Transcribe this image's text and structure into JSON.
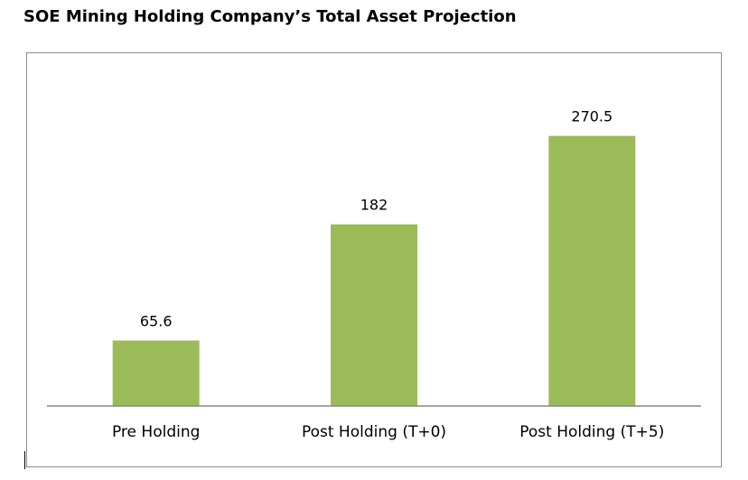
{
  "chart_data": {
    "type": "bar",
    "title": "SOE Mining Holding Company’s Total Asset Projection",
    "categories": [
      "Pre Holding",
      "Post Holding (T+0)",
      "Post Holding (T+5)"
    ],
    "values": [
      65.6,
      182,
      270.5
    ],
    "data_labels": [
      "65.6",
      "182",
      "270.5"
    ],
    "xlabel": "",
    "ylabel": "",
    "ylim": [
      0,
      300
    ],
    "grid": false,
    "legend": "none",
    "colors": {
      "bar": "#9bbb59",
      "axis": "#868686",
      "frame": "#8c8c8c",
      "text": "#000000"
    }
  }
}
